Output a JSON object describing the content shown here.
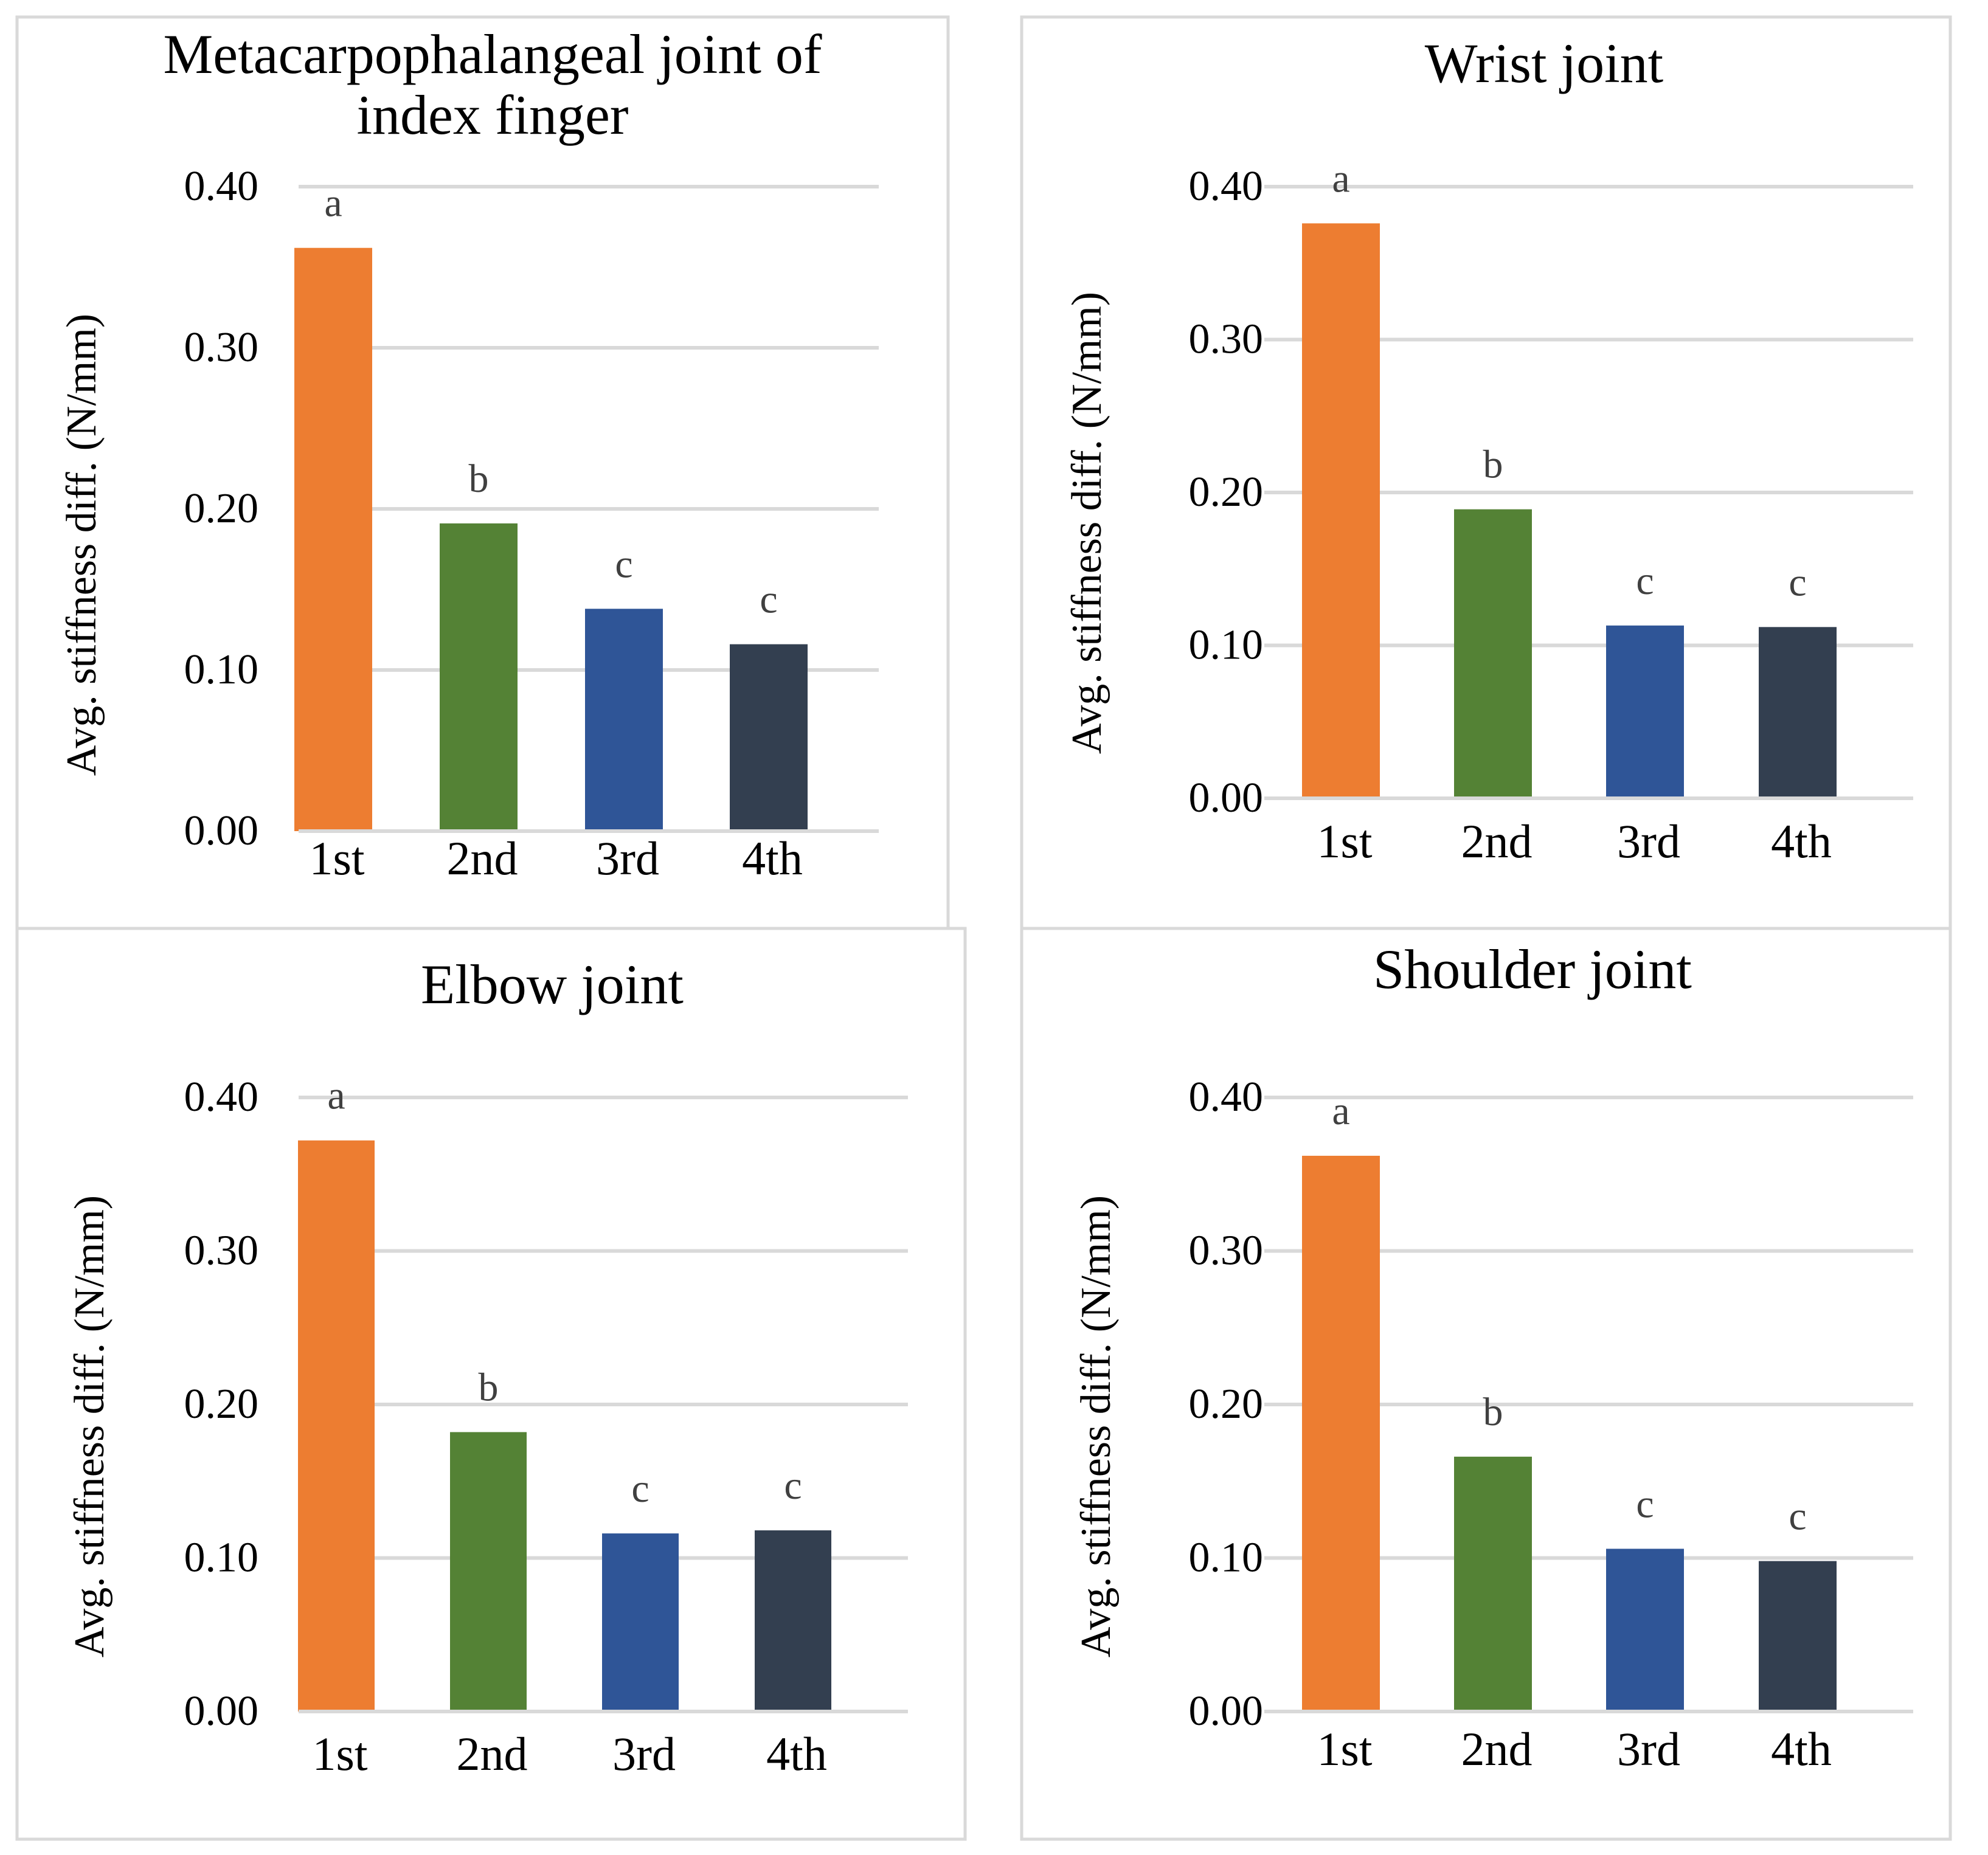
{
  "chart_data": [
    {
      "type": "bar",
      "title": "Metacarpophalangeal joint of\nindex finger",
      "ylabel": "Avg. stiffness diff. (N/mm)",
      "xlabel": "",
      "ylim": [
        0,
        0.4
      ],
      "yticks": [
        "0.00",
        "0.10",
        "0.20",
        "0.30",
        "0.40"
      ],
      "categories": [
        "1st",
        "2nd",
        "3rd",
        "4th"
      ],
      "values": [
        0.362,
        0.191,
        0.138,
        0.116
      ],
      "significance_labels": [
        "a",
        "b",
        "c",
        "c"
      ],
      "grid": true
    },
    {
      "type": "bar",
      "title": "Wrist joint",
      "ylabel": "Avg. stiffness diff. (N/mm)",
      "xlabel": "",
      "ylim": [
        0,
        0.4
      ],
      "yticks": [
        "0.00",
        "0.10",
        "0.20",
        "0.30",
        "0.40"
      ],
      "categories": [
        "1st",
        "2nd",
        "3rd",
        "4th"
      ],
      "values": [
        0.376,
        0.189,
        0.113,
        0.112
      ],
      "significance_labels": [
        "a",
        "b",
        "c",
        "c"
      ],
      "grid": true
    },
    {
      "type": "bar",
      "title": "Elbow joint",
      "ylabel": "Avg. stiffness diff. (N/mm)",
      "xlabel": "",
      "ylim": [
        0,
        0.4
      ],
      "yticks": [
        "0.00",
        "0.10",
        "0.20",
        "0.30",
        "0.40"
      ],
      "categories": [
        "1st",
        "2nd",
        "3rd",
        "4th"
      ],
      "values": [
        0.372,
        0.182,
        0.116,
        0.118
      ],
      "significance_labels": [
        "a",
        "b",
        "c",
        "c"
      ],
      "grid": true
    },
    {
      "type": "bar",
      "title": "Shoulder joint",
      "ylabel": "Avg. stiffness diff. (N/mm)",
      "xlabel": "",
      "ylim": [
        0,
        0.4
      ],
      "yticks": [
        "0.00",
        "0.10",
        "0.20",
        "0.30",
        "0.40"
      ],
      "categories": [
        "1st",
        "2nd",
        "3rd",
        "4th"
      ],
      "values": [
        0.362,
        0.166,
        0.106,
        0.098
      ],
      "significance_labels": [
        "a",
        "b",
        "c",
        "c"
      ],
      "grid": true
    }
  ],
  "colors": {
    "bars": [
      "#ED7D31",
      "#548235",
      "#2F5597",
      "#333F50"
    ],
    "grid": "#D9D9D9",
    "panel_border": "#D9D9D9",
    "text": "#000000",
    "sig_text": "#404040"
  }
}
